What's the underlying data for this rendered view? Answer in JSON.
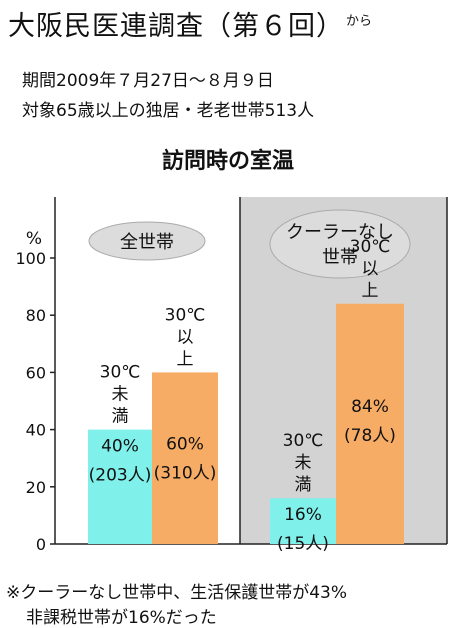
{
  "header": {
    "title": "大阪民医連調査（第６回）",
    "title_suffix": "から",
    "period": "期間2009年７月27日～８月９日",
    "target": "対象65歳以上の独居・老老世帯513人"
  },
  "footnote": {
    "line1": "※クーラーなし世帯中、生活保護世帯が43%",
    "line2": "非課税世帯が16%だった"
  },
  "colors": {
    "below30": "#80f0ea",
    "above30": "#f7ac66",
    "shade": "#d3d3d3",
    "oval": "#dcdcdc"
  },
  "chart_data": {
    "type": "bar",
    "title": "訪問時の室温",
    "ylabel": "%",
    "ylim": [
      0,
      100
    ],
    "yticks": [
      "0",
      "20",
      "40",
      "60",
      "80",
      "100"
    ],
    "groups": [
      {
        "name": "全世帯",
        "bars": [
          {
            "category_lines": [
              "30℃",
              "未",
              "満"
            ],
            "value": 40,
            "label": "40%",
            "count": "(203人)",
            "color_key": "below30"
          },
          {
            "category_lines": [
              "30℃",
              "以",
              "上"
            ],
            "value": 60,
            "label": "60%",
            "count": "(310人)",
            "color_key": "above30"
          }
        ]
      },
      {
        "name_lines": [
          "クーラーなし",
          "世帯"
        ],
        "bars": [
          {
            "category_lines": [
              "30℃",
              "未",
              "満"
            ],
            "value": 16,
            "label": "16%",
            "count": "(15人)",
            "color_key": "below30"
          },
          {
            "category_lines": [
              "30℃",
              "以",
              "上"
            ],
            "value": 84,
            "label": "84%",
            "count": "(78人)",
            "color_key": "above30"
          }
        ]
      }
    ]
  }
}
